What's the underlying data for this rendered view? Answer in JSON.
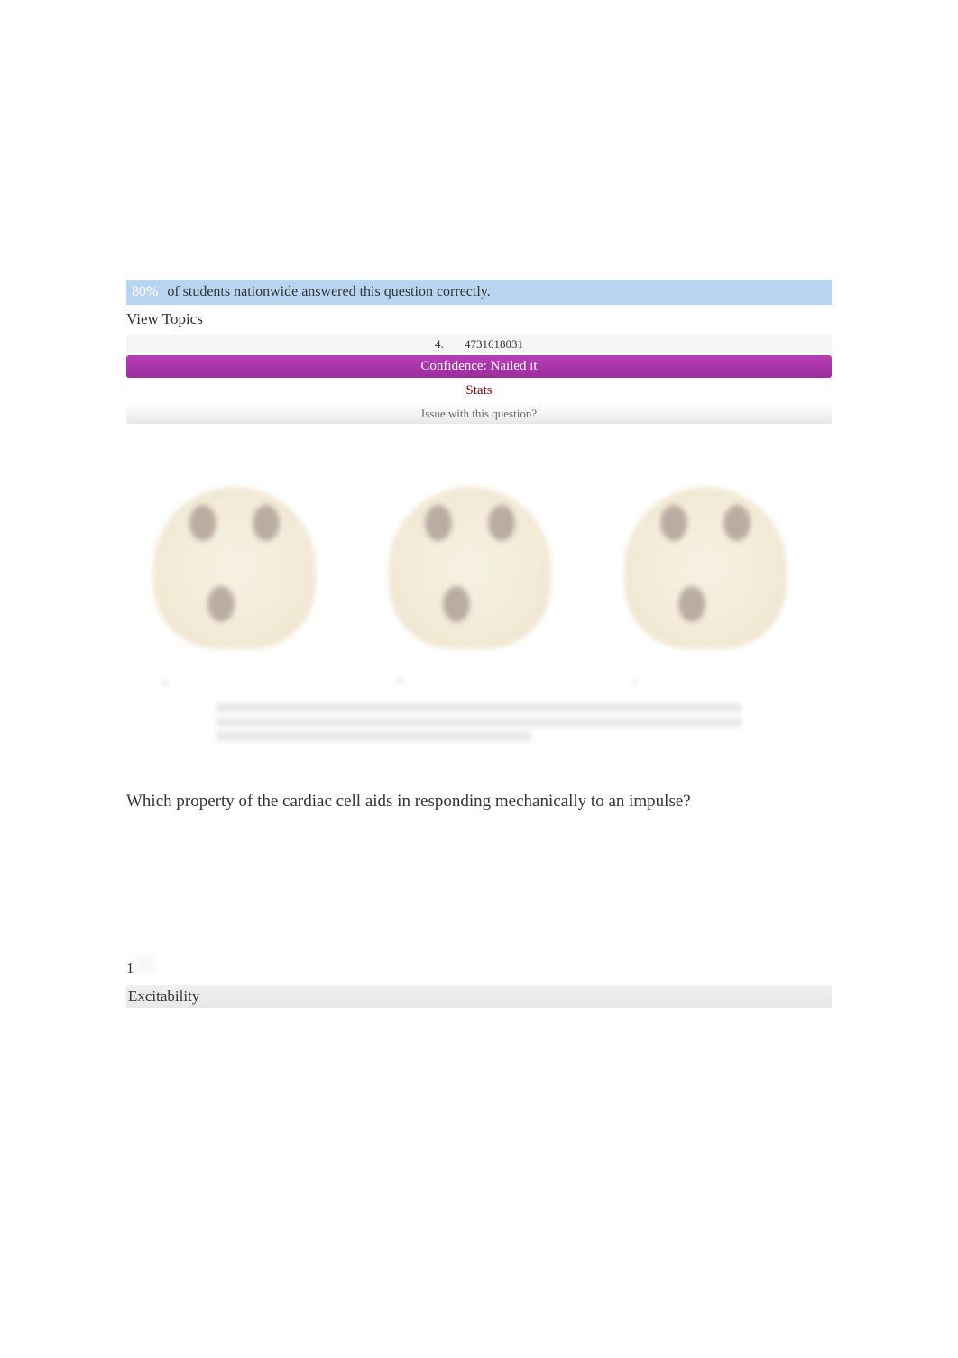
{
  "stats": {
    "percentage": "80%",
    "text": "of students nationwide answered this question correctly."
  },
  "viewTopics": "View Topics",
  "questionInfo": {
    "number": "4.",
    "id": "4731618031"
  },
  "confidence": {
    "label": "Confidence: Nailed it"
  },
  "statsLink": "Stats",
  "issueLink": "Issue with this question?",
  "question": {
    "text": "Which property of the cardiac cell aids in responding mechanically to an impulse?"
  },
  "answer": {
    "number": "1",
    "text": "Excitability"
  },
  "colors": {
    "statsBarBg": "#b8d4f0",
    "confidenceBg": "#9c2d9c",
    "statsLinkColor": "#8b0000",
    "textColor": "#333333"
  }
}
